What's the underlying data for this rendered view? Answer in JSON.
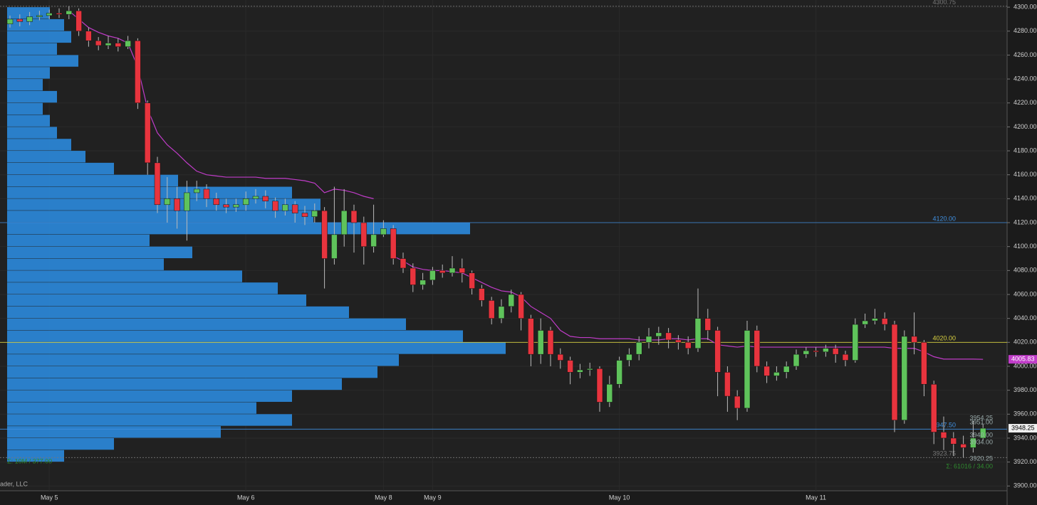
{
  "chart_data": {
    "type": "candlestick",
    "categories": [
      null,
      null,
      null,
      null,
      "May 5",
      null,
      null,
      null,
      null,
      null,
      null,
      null,
      null,
      null,
      null,
      null,
      null,
      null,
      null,
      null,
      null,
      null,
      null,
      null,
      "May 6",
      null,
      null,
      null,
      null,
      null,
      null,
      null,
      null,
      null,
      null,
      null,
      null,
      null,
      "May 8",
      null,
      null,
      null,
      null,
      "May 9",
      null,
      null,
      null,
      null,
      null,
      null,
      null,
      null,
      null,
      null,
      null,
      null,
      null,
      null,
      null,
      null,
      null,
      null,
      "May 10",
      null,
      null,
      null,
      null,
      null,
      null,
      null,
      null,
      null,
      null,
      null,
      null,
      null,
      null,
      null,
      null,
      null,
      null,
      null,
      "May 11",
      null,
      null,
      null,
      null,
      null,
      null,
      null,
      null,
      null,
      null,
      null,
      null,
      null,
      null,
      null,
      null,
      null
    ],
    "open": [
      4286,
      4290,
      4288,
      4292,
      4293,
      4295,
      4294,
      4297,
      4280,
      4272,
      4268,
      4270,
      4267,
      4272,
      4220,
      4170,
      4135,
      4140,
      4130,
      4145,
      4148,
      4140,
      4135,
      4133,
      4135,
      4140,
      4142,
      4138,
      4130,
      4135,
      4128,
      4125,
      4130,
      4090,
      4110,
      4130,
      4120,
      4100,
      4110,
      4115,
      4090,
      4082,
      4068,
      4072,
      4080,
      4078,
      4082,
      4078,
      4065,
      4055,
      4040,
      4050,
      4060,
      4040,
      4010,
      4030,
      4010,
      4005,
      3995,
      3997,
      3998,
      3970,
      3985,
      4005,
      4010,
      4020,
      4025,
      4028,
      4022,
      4020,
      4015,
      4040,
      4030,
      3995,
      3975,
      3965,
      4030,
      4000,
      3992,
      3995,
      4000,
      4010,
      4013,
      4012,
      4015,
      4010,
      4005,
      4035,
      4038,
      4040,
      4035,
      3955,
      4025,
      4020,
      3985,
      3945,
      3940,
      3935,
      3932,
      3940
    ],
    "high": [
      4293,
      4294,
      4296,
      4297,
      4298,
      4299,
      4300.75,
      4299,
      4283,
      4275,
      4276,
      4274,
      4276,
      4274,
      4222,
      4175,
      4158,
      4150,
      4155,
      4155,
      4152,
      4145,
      4140,
      4140,
      4146,
      4148,
      4147,
      4141,
      4140,
      4138,
      4134,
      4136,
      4133,
      4150,
      4148,
      4135,
      4125,
      4135,
      4122,
      4118,
      4095,
      4086,
      4078,
      4083,
      4085,
      4092,
      4090,
      4080,
      4068,
      4058,
      4056,
      4064,
      4062,
      4043,
      4040,
      4033,
      4015,
      4008,
      4002,
      4003,
      4000,
      3992,
      4008,
      4015,
      4025,
      4032,
      4033,
      4032,
      4026,
      4025,
      4065,
      4048,
      4033,
      4000,
      3980,
      4038,
      4034,
      4004,
      4000,
      4004,
      4014,
      4016,
      4016,
      4018,
      4018,
      4013,
      4040,
      4044,
      4048,
      4045,
      4038,
      4030,
      4045,
      4022,
      3988,
      3958,
      3945,
      3942,
      3954.25,
      3952
    ],
    "low": [
      4283,
      4284,
      4285,
      4289,
      4290,
      4291,
      4290,
      4276,
      4267,
      4264,
      4265,
      4263,
      4265,
      4215,
      4160,
      4128,
      4120,
      4115,
      4105,
      4138,
      4133,
      4130,
      4128,
      4129,
      4130,
      4136,
      4132,
      4124,
      4126,
      4120,
      4118,
      4120,
      4065,
      4085,
      4100,
      4095,
      4085,
      4095,
      4108,
      4085,
      4078,
      4062,
      4064,
      4068,
      4074,
      4075,
      4070,
      4060,
      4050,
      4035,
      4036,
      4045,
      4030,
      4000,
      4002,
      4000,
      3998,
      3985,
      3990,
      3992,
      3962,
      3966,
      3982,
      4000,
      4005,
      4015,
      4018,
      4015,
      4014,
      4010,
      4012,
      4022,
      3975,
      3962,
      3955,
      3962,
      3995,
      3986,
      3988,
      3990,
      3997,
      4007,
      4008,
      4008,
      4003,
      4000,
      4003,
      4032,
      4035,
      4030,
      3945,
      3952,
      4010,
      3975,
      3935,
      3930,
      3925,
      3923.75,
      3928,
      3938
    ],
    "close": [
      4290,
      4288,
      4292,
      4293,
      4295,
      4294,
      4297,
      4280,
      4272,
      4268,
      4270,
      4267,
      4272,
      4220,
      4170,
      4135,
      4140,
      4130,
      4145,
      4148,
      4140,
      4135,
      4133,
      4135,
      4140,
      4142,
      4138,
      4130,
      4135,
      4128,
      4125,
      4130,
      4090,
      4110,
      4130,
      4120,
      4100,
      4110,
      4115,
      4090,
      4082,
      4068,
      4072,
      4080,
      4078,
      4082,
      4078,
      4065,
      4055,
      4040,
      4050,
      4060,
      4040,
      4010,
      4030,
      4010,
      4005,
      3995,
      3997,
      3998,
      3970,
      3985,
      4005,
      4010,
      4020,
      4025,
      4028,
      4022,
      4020,
      4015,
      4040,
      4030,
      3995,
      3975,
      3965,
      4030,
      4000,
      3992,
      3995,
      4000,
      4010,
      4013,
      4012,
      4015,
      4010,
      4005,
      4035,
      4038,
      4040,
      4035,
      3955,
      4025,
      4020,
      3985,
      3945,
      3940,
      3935,
      3932,
      3940,
      3948.25
    ],
    "up_color": "#5fc35b",
    "down_color": "#e8343e",
    "vwap": {
      "color": "#c03cc8",
      "values": [
        null,
        null,
        null,
        null,
        null,
        null,
        4297,
        4290,
        4283,
        4279,
        4276,
        4274,
        4270,
        4250,
        4215,
        4195,
        4185,
        4178,
        4170,
        4163,
        4160,
        4159,
        4158,
        4158,
        4158,
        4158,
        4157,
        4157,
        4157,
        4156,
        4155,
        4153,
        4145,
        4148,
        4147,
        4145,
        4142,
        4140,
        null,
        4092,
        4088,
        4083,
        4081,
        4080,
        4080,
        4079,
        4078,
        4074,
        4070,
        4066,
        4063,
        4062,
        4058,
        4050,
        4045,
        4040,
        4030,
        4025,
        4024,
        4024,
        4023,
        4023,
        4023,
        4023,
        4022,
        4022,
        4022,
        4023,
        4023,
        4022,
        4023,
        4023,
        4018,
        4017,
        4016,
        4017,
        4016,
        4016,
        4016,
        4016,
        4016,
        4016,
        4016,
        4016,
        4016,
        4016,
        4016,
        4016,
        4016,
        4016,
        4015,
        4015,
        4015,
        4012,
        4008,
        4006,
        4006,
        4006,
        4006,
        4005.83
      ]
    },
    "profile": {
      "color": "#2b8fe8",
      "bins": [
        3920,
        3930,
        3940,
        3950,
        3960,
        3970,
        3980,
        3990,
        4000,
        4010,
        4020,
        4030,
        4040,
        4050,
        4060,
        4070,
        4080,
        4090,
        4100,
        4110,
        4120,
        4130,
        4140,
        4150,
        4160,
        4170,
        4180,
        4190,
        4200,
        4210,
        4220,
        4230,
        4240,
        4250,
        4260,
        4270,
        4280,
        4290,
        4300
      ],
      "volumes": [
        80,
        150,
        300,
        400,
        350,
        400,
        470,
        520,
        550,
        700,
        640,
        560,
        480,
        420,
        380,
        330,
        220,
        260,
        200,
        650,
        430,
        440,
        400,
        240,
        150,
        110,
        90,
        70,
        60,
        50,
        70,
        50,
        60,
        100,
        70,
        90,
        80,
        60
      ],
      "label": "Σ: 10M / 377.00"
    },
    "levels": [
      {
        "value": 4300.75,
        "color": "#777777"
      },
      {
        "value": 4120,
        "label": "4120.00",
        "color": "#3f8fe0"
      },
      {
        "value": 4020,
        "label": "4020.00",
        "color": "#d8d040"
      },
      {
        "value": 3947.5,
        "label": "3947.50",
        "color": "#3f8fe0"
      },
      {
        "value": 3923.75,
        "color": "#777777"
      }
    ],
    "session_profile_labels": [
      "3954.25",
      "3951.00",
      "3940.00",
      "3934.00",
      "3920.25",
      "Σ: 61016 / 34.00"
    ],
    "ylim": [
      3896,
      4306
    ],
    "yticks": [
      {
        "value": 3900,
        "label": "3900.00"
      },
      {
        "value": 3920,
        "label": "3920.00"
      },
      {
        "value": 3940,
        "label": "3940.00"
      },
      {
        "value": 3960,
        "label": "3960.00"
      },
      {
        "value": 3980,
        "label": "3980.00"
      },
      {
        "value": 4000,
        "label": "4000.00"
      },
      {
        "value": 4020,
        "label": "4020.00"
      },
      {
        "value": 4040,
        "label": "4040.00"
      },
      {
        "value": 4060,
        "label": "4060.00"
      },
      {
        "value": 4080,
        "label": "4080.00"
      },
      {
        "value": 4100,
        "label": "4100.00"
      },
      {
        "value": 4120,
        "label": "4120.00"
      },
      {
        "value": 4140,
        "label": "4140.00"
      },
      {
        "value": 4160,
        "label": "4160.00"
      },
      {
        "value": 4180,
        "label": "4180.00"
      },
      {
        "value": 4200,
        "label": "4200.00"
      },
      {
        "value": 4220,
        "label": "4220.00"
      },
      {
        "value": 4240,
        "label": "4240.00"
      },
      {
        "value": 4260,
        "label": "4260.00"
      },
      {
        "value": 4280,
        "label": "4280.00"
      },
      {
        "value": 4300,
        "label": "4300.00"
      }
    ],
    "footer": "ader, LLC"
  }
}
